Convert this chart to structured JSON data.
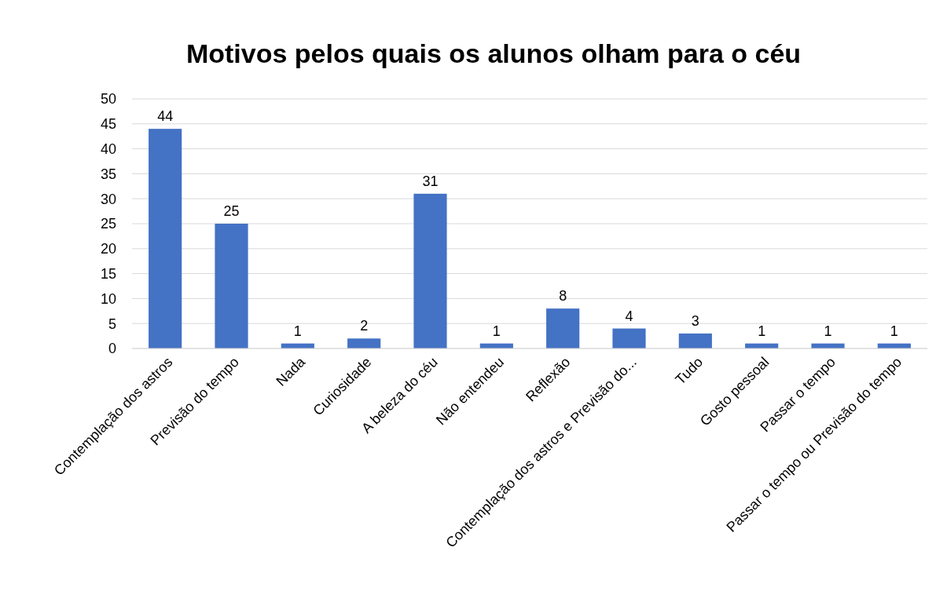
{
  "chart_data": {
    "type": "bar",
    "title": "Motivos pelos quais os alunos olham para o céu",
    "categories": [
      "Contemplação dos astros",
      "Previsão do tempo",
      "Nada",
      "Curiosidade",
      "A beleza do céu",
      "Não entendeu",
      "Reflexão",
      "Contemplação dos astros e Previsão do...",
      "Tudo",
      "Gosto pessoal",
      "Passar o tempo",
      "Passar o tempo ou Previsão do tempo"
    ],
    "values": [
      44,
      25,
      1,
      2,
      31,
      1,
      8,
      4,
      3,
      1,
      1,
      1
    ],
    "color": "#4472c4",
    "ylim": [
      0,
      50
    ],
    "yticks": [
      0,
      5,
      10,
      15,
      20,
      25,
      30,
      35,
      40,
      45,
      50
    ],
    "grid": "y",
    "data_labels": true
  }
}
